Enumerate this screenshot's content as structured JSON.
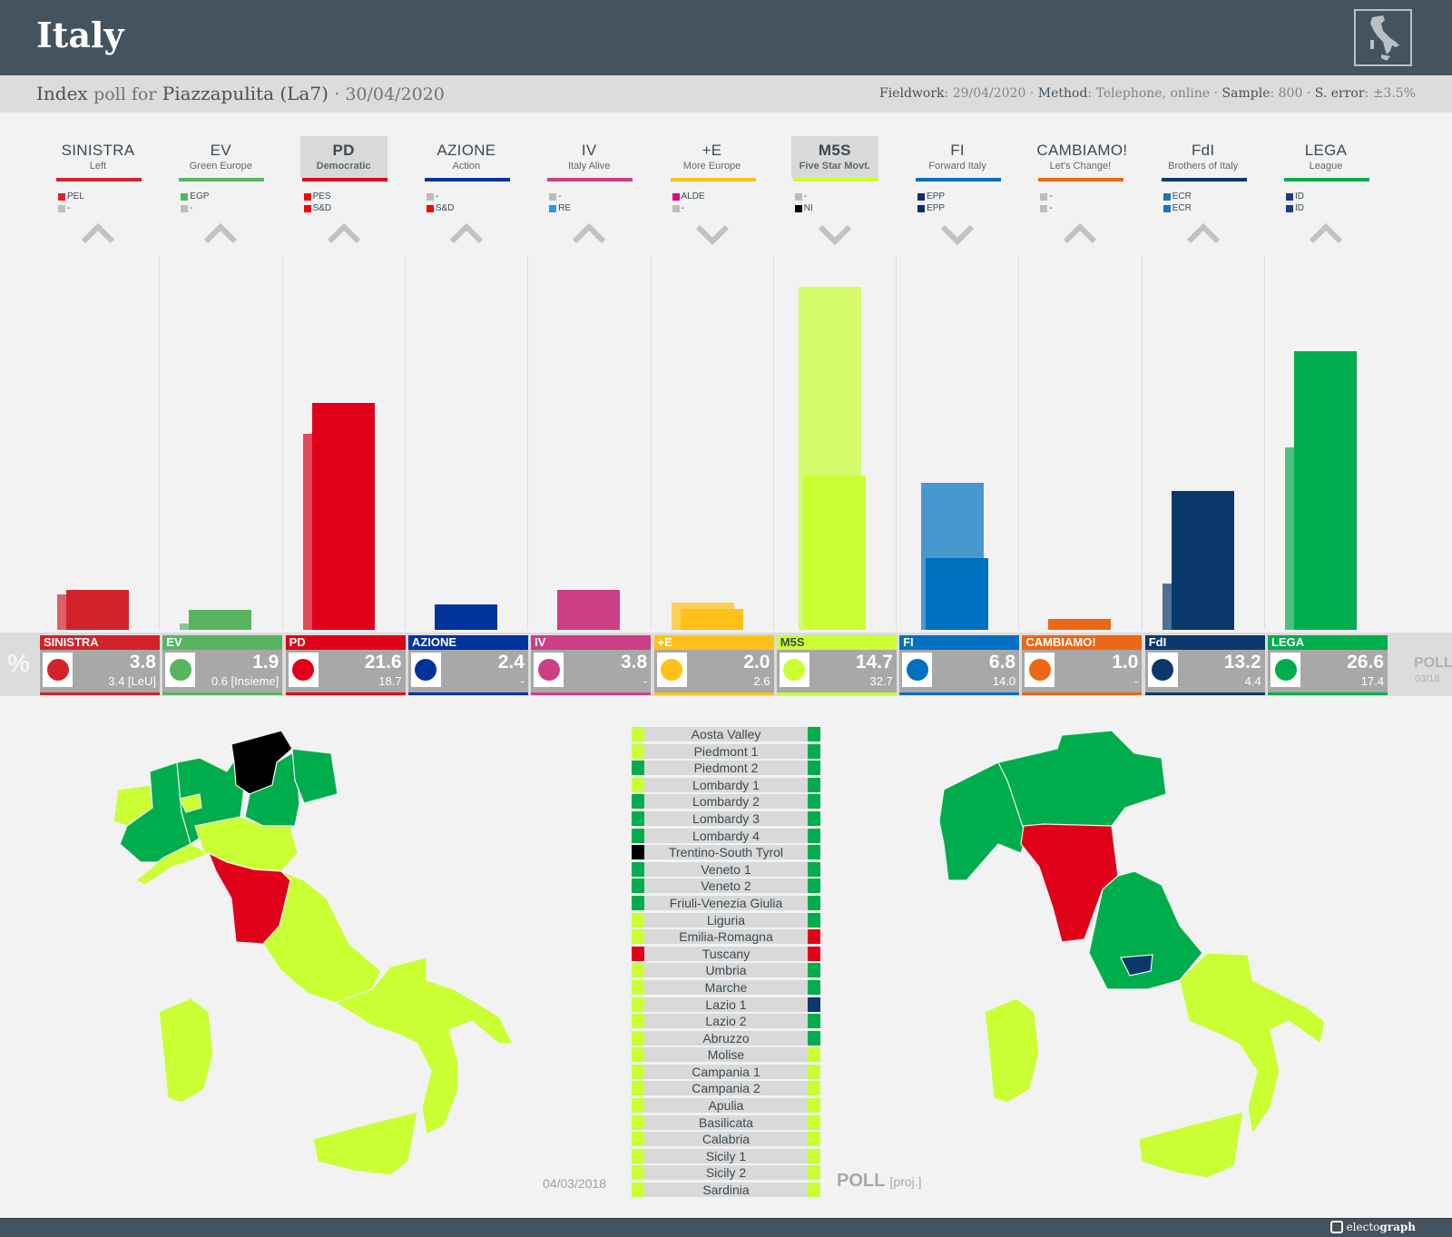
{
  "header": {
    "title": "Italy",
    "flag_icon": "italy-map-icon"
  },
  "subheader": {
    "pollster": "Index",
    "poll_for_text": "poll for",
    "client": "Piazzapulita (La7)",
    "date": "· 30/04/2020",
    "fieldwork_label": "Fieldwork",
    "fieldwork": ": 29/04/2020 · ",
    "method_label": "Method",
    "method": ": Telephone, online · ",
    "sample_label": "Sample",
    "sample": ": 800 · ",
    "error_label": "S. error",
    "error": ": ±3.5%"
  },
  "parties": [
    {
      "abbr": "SINISTRA",
      "full": "Left",
      "color": "#d2232a",
      "highlight": false,
      "groups": [
        {
          "color": "#e8202a",
          "name": "PEL"
        },
        {
          "color": "#bdbdbd",
          "name": "-"
        }
      ],
      "trend": "up",
      "poll": "3.8",
      "prev": "3.4 [LeU]",
      "poll_val": 3.8,
      "prev_val": 3.4
    },
    {
      "abbr": "EV",
      "full": "Green Europe",
      "color": "#57b560",
      "highlight": false,
      "groups": [
        {
          "color": "#57b560",
          "name": "EGP"
        },
        {
          "color": "#bdbdbd",
          "name": "-"
        }
      ],
      "trend": "up",
      "poll": "1.9",
      "prev": "0.6 [Insieme]",
      "poll_val": 1.9,
      "prev_val": 0.6
    },
    {
      "abbr": "PD",
      "full": "Democratic",
      "color": "#e0001a",
      "highlight": true,
      "groups": [
        {
          "color": "#ff0000",
          "name": "PES"
        },
        {
          "color": "#ff0000",
          "name": "S&D"
        }
      ],
      "trend": "up",
      "poll": "21.6",
      "prev": "18.7",
      "poll_val": 21.6,
      "prev_val": 18.7
    },
    {
      "abbr": "AZIONE",
      "full": "Action",
      "color": "#00339b",
      "highlight": false,
      "groups": [
        {
          "color": "#bdbdbd",
          "name": "-"
        },
        {
          "color": "#ff0000",
          "name": "S&D"
        }
      ],
      "trend": "up",
      "poll": "2.4",
      "prev": "-",
      "poll_val": 2.4,
      "prev_val": 0
    },
    {
      "abbr": "IV",
      "full": "Italy Alive",
      "color": "#cc3f84",
      "highlight": false,
      "groups": [
        {
          "color": "#bdbdbd",
          "name": "-"
        },
        {
          "color": "#1e9bf0",
          "name": "RE"
        }
      ],
      "trend": "up",
      "poll": "3.8",
      "prev": "-",
      "poll_val": 3.8,
      "prev_val": 0
    },
    {
      "abbr": "+E",
      "full": "More Europe",
      "color": "#ffc117",
      "highlight": false,
      "groups": [
        {
          "color": "#e5007e",
          "name": "ALDE"
        },
        {
          "color": "#bdbdbd",
          "name": "-"
        }
      ],
      "trend": "down",
      "poll": "2.0",
      "prev": "2.6",
      "poll_val": 2.0,
      "prev_val": 2.6
    },
    {
      "abbr": "M5S",
      "full": "Five Star Movt.",
      "color": "#c9ff33",
      "highlight": true,
      "groups": [
        {
          "color": "#bdbdbd",
          "name": "-"
        },
        {
          "color": "#000000",
          "name": "NI"
        }
      ],
      "trend": "down",
      "poll": "14.7",
      "prev": "32.7",
      "poll_val": 14.7,
      "prev_val": 32.7
    },
    {
      "abbr": "FI",
      "full": "Forward Italy",
      "color": "#0070c0",
      "highlight": false,
      "groups": [
        {
          "color": "#0b2f6b",
          "name": "EPP"
        },
        {
          "color": "#0b2f6b",
          "name": "EPP"
        }
      ],
      "trend": "down",
      "poll": "6.8",
      "prev": "14.0",
      "poll_val": 6.8,
      "prev_val": 14.0
    },
    {
      "abbr": "CAMBIAMO!",
      "full": "Let's Change!",
      "color": "#ec6716",
      "highlight": false,
      "groups": [
        {
          "color": "#bdbdbd",
          "name": "-"
        },
        {
          "color": "#bdbdbd",
          "name": "-"
        }
      ],
      "trend": "up",
      "poll": "1.0",
      "prev": "-",
      "poll_val": 1.0,
      "prev_val": 0
    },
    {
      "abbr": "FdI",
      "full": "Brothers of Italy",
      "color": "#0b396b",
      "highlight": false,
      "groups": [
        {
          "color": "#1d76b3",
          "name": "ECR"
        },
        {
          "color": "#1d76b3",
          "name": "ECR"
        }
      ],
      "trend": "up",
      "poll": "13.2",
      "prev": "4.4",
      "poll_val": 13.2,
      "prev_val": 4.4
    },
    {
      "abbr": "LEGA",
      "full": "League",
      "color": "#00ad4c",
      "highlight": false,
      "groups": [
        {
          "color": "#1b3a8c",
          "name": "ID"
        },
        {
          "color": "#1b3a8c",
          "name": "ID"
        }
      ],
      "trend": "up",
      "poll": "26.6",
      "prev": "17.4",
      "poll_val": 26.6,
      "prev_val": 17.4
    }
  ],
  "values_row": {
    "pct_label": "%",
    "poll_label": "POLL",
    "poll_sub": "03/18"
  },
  "legend": {
    "left_label": "04/03/2018",
    "right_label": "POLL",
    "right_sub": "[proj.]",
    "rows": [
      {
        "name": "Aosta Valley",
        "left": "#c9ff33",
        "right": "#00ad4c"
      },
      {
        "name": "Piedmont 1",
        "left": "#c9ff33",
        "right": "#00ad4c"
      },
      {
        "name": "Piedmont 2",
        "left": "#00ad4c",
        "right": "#00ad4c"
      },
      {
        "name": "Lombardy 1",
        "left": "#c9ff33",
        "right": "#00ad4c"
      },
      {
        "name": "Lombardy 2",
        "left": "#00ad4c",
        "right": "#00ad4c"
      },
      {
        "name": "Lombardy 3",
        "left": "#00ad4c",
        "right": "#00ad4c"
      },
      {
        "name": "Lombardy 4",
        "left": "#00ad4c",
        "right": "#00ad4c"
      },
      {
        "name": "Trentino-South Tyrol",
        "left": "#000000",
        "right": "#00ad4c"
      },
      {
        "name": "Veneto 1",
        "left": "#00ad4c",
        "right": "#00ad4c"
      },
      {
        "name": "Veneto 2",
        "left": "#00ad4c",
        "right": "#00ad4c"
      },
      {
        "name": "Friuli-Venezia Giulia",
        "left": "#00ad4c",
        "right": "#00ad4c"
      },
      {
        "name": "Liguria",
        "left": "#c9ff33",
        "right": "#00ad4c"
      },
      {
        "name": "Emilia-Romagna",
        "left": "#c9ff33",
        "right": "#e0001a"
      },
      {
        "name": "Tuscany",
        "left": "#e0001a",
        "right": "#e0001a"
      },
      {
        "name": "Umbria",
        "left": "#c9ff33",
        "right": "#00ad4c"
      },
      {
        "name": "Marche",
        "left": "#c9ff33",
        "right": "#00ad4c"
      },
      {
        "name": "Lazio 1",
        "left": "#c9ff33",
        "right": "#0b396b"
      },
      {
        "name": "Lazio 2",
        "left": "#c9ff33",
        "right": "#00ad4c"
      },
      {
        "name": "Abruzzo",
        "left": "#c9ff33",
        "right": "#00ad4c"
      },
      {
        "name": "Molise",
        "left": "#c9ff33",
        "right": "#c9ff33"
      },
      {
        "name": "Campania 1",
        "left": "#c9ff33",
        "right": "#c9ff33"
      },
      {
        "name": "Campania 2",
        "left": "#c9ff33",
        "right": "#c9ff33"
      },
      {
        "name": "Apulia",
        "left": "#c9ff33",
        "right": "#c9ff33"
      },
      {
        "name": "Basilicata",
        "left": "#c9ff33",
        "right": "#c9ff33"
      },
      {
        "name": "Calabria",
        "left": "#c9ff33",
        "right": "#c9ff33"
      },
      {
        "name": "Sicily 1",
        "left": "#c9ff33",
        "right": "#c9ff33"
      },
      {
        "name": "Sicily 2",
        "left": "#c9ff33",
        "right": "#c9ff33"
      },
      {
        "name": "Sardinia",
        "left": "#c9ff33",
        "right": "#c9ff33"
      }
    ]
  },
  "footer": {
    "brand_light": "electo",
    "brand_bold": "graph"
  },
  "chart_data": {
    "type": "bar",
    "title": "Italy — Index poll for Piazzapulita (La7) · 30/04/2020",
    "categories": [
      "SINISTRA",
      "EV",
      "PD",
      "AZIONE",
      "IV",
      "+E",
      "M5S",
      "FI",
      "CAMBIAMO!",
      "FdI",
      "LEGA"
    ],
    "series": [
      {
        "name": "Poll 30/04/2020",
        "values": [
          3.8,
          1.9,
          21.6,
          2.4,
          3.8,
          2.0,
          14.7,
          6.8,
          1.0,
          13.2,
          26.6
        ]
      },
      {
        "name": "Election 04/03/2018",
        "values": [
          3.4,
          0.6,
          18.7,
          null,
          null,
          2.6,
          32.7,
          14.0,
          null,
          4.4,
          17.4
        ]
      }
    ],
    "prev_notes": {
      "SINISTRA": "LeU",
      "EV": "Insieme"
    },
    "xlabel": "",
    "ylabel": "%",
    "ylim": [
      0,
      35
    ],
    "grid": false,
    "legend_position": "right"
  }
}
